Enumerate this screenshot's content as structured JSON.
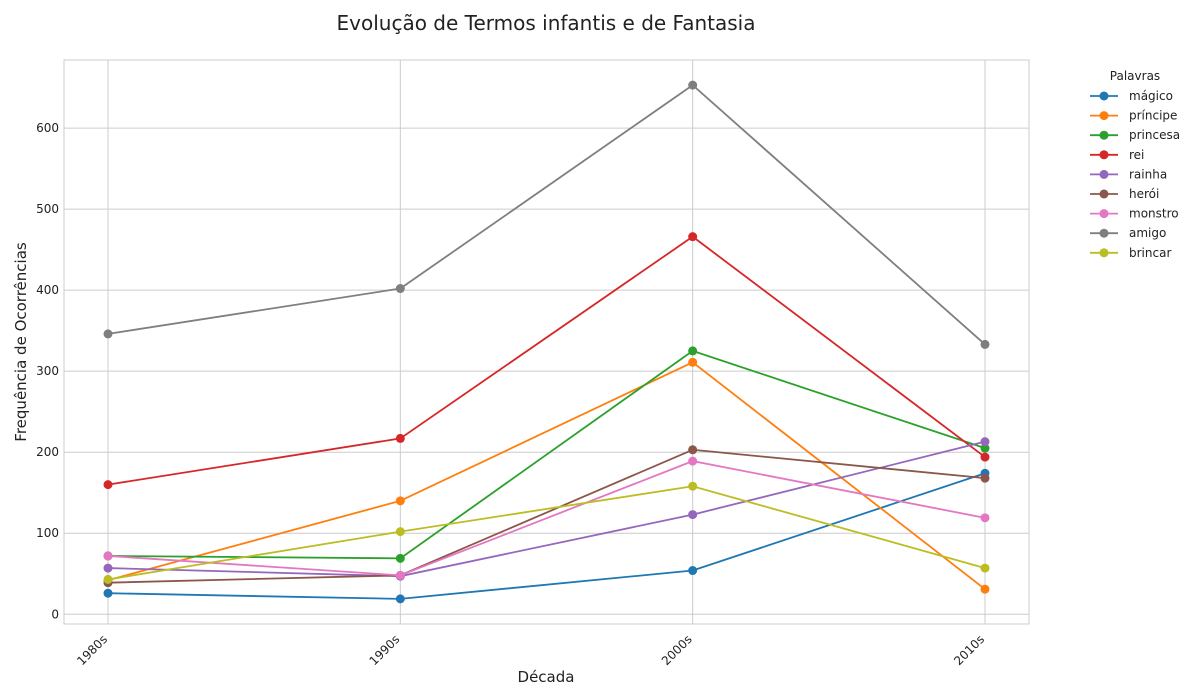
{
  "chart_data": {
    "type": "line",
    "title": "Evolução de Termos infantis e de Fantasia",
    "xlabel": "Década",
    "ylabel": "Frequência de Ocorrências",
    "categories": [
      "1980s",
      "1990s",
      "2000s",
      "2010s"
    ],
    "ylim": [
      -12,
      684
    ],
    "yticks": [
      0,
      100,
      200,
      300,
      400,
      500,
      600
    ],
    "grid": true,
    "legend_title": "Palavras",
    "legend_position": "outside-right",
    "series": [
      {
        "name": "mágico",
        "color": "#1f77b4",
        "values": [
          26,
          19,
          54,
          174
        ]
      },
      {
        "name": "príncipe",
        "color": "#ff7f0e",
        "values": [
          42,
          140,
          311,
          31
        ]
      },
      {
        "name": "princesa",
        "color": "#2ca02c",
        "values": [
          72,
          69,
          325,
          205
        ]
      },
      {
        "name": "rei",
        "color": "#d62728",
        "values": [
          160,
          217,
          466,
          194
        ]
      },
      {
        "name": "rainha",
        "color": "#9467bd",
        "values": [
          57,
          47,
          123,
          213
        ]
      },
      {
        "name": "herói",
        "color": "#8c564b",
        "values": [
          39,
          48,
          203,
          168
        ]
      },
      {
        "name": "monstro",
        "color": "#e377c2",
        "values": [
          72,
          48,
          189,
          119
        ]
      },
      {
        "name": "amigo",
        "color": "#7f7f7f",
        "values": [
          346,
          402,
          653,
          333
        ]
      },
      {
        "name": "brincar",
        "color": "#bcbd22",
        "values": [
          43,
          102,
          158,
          57
        ]
      }
    ]
  }
}
